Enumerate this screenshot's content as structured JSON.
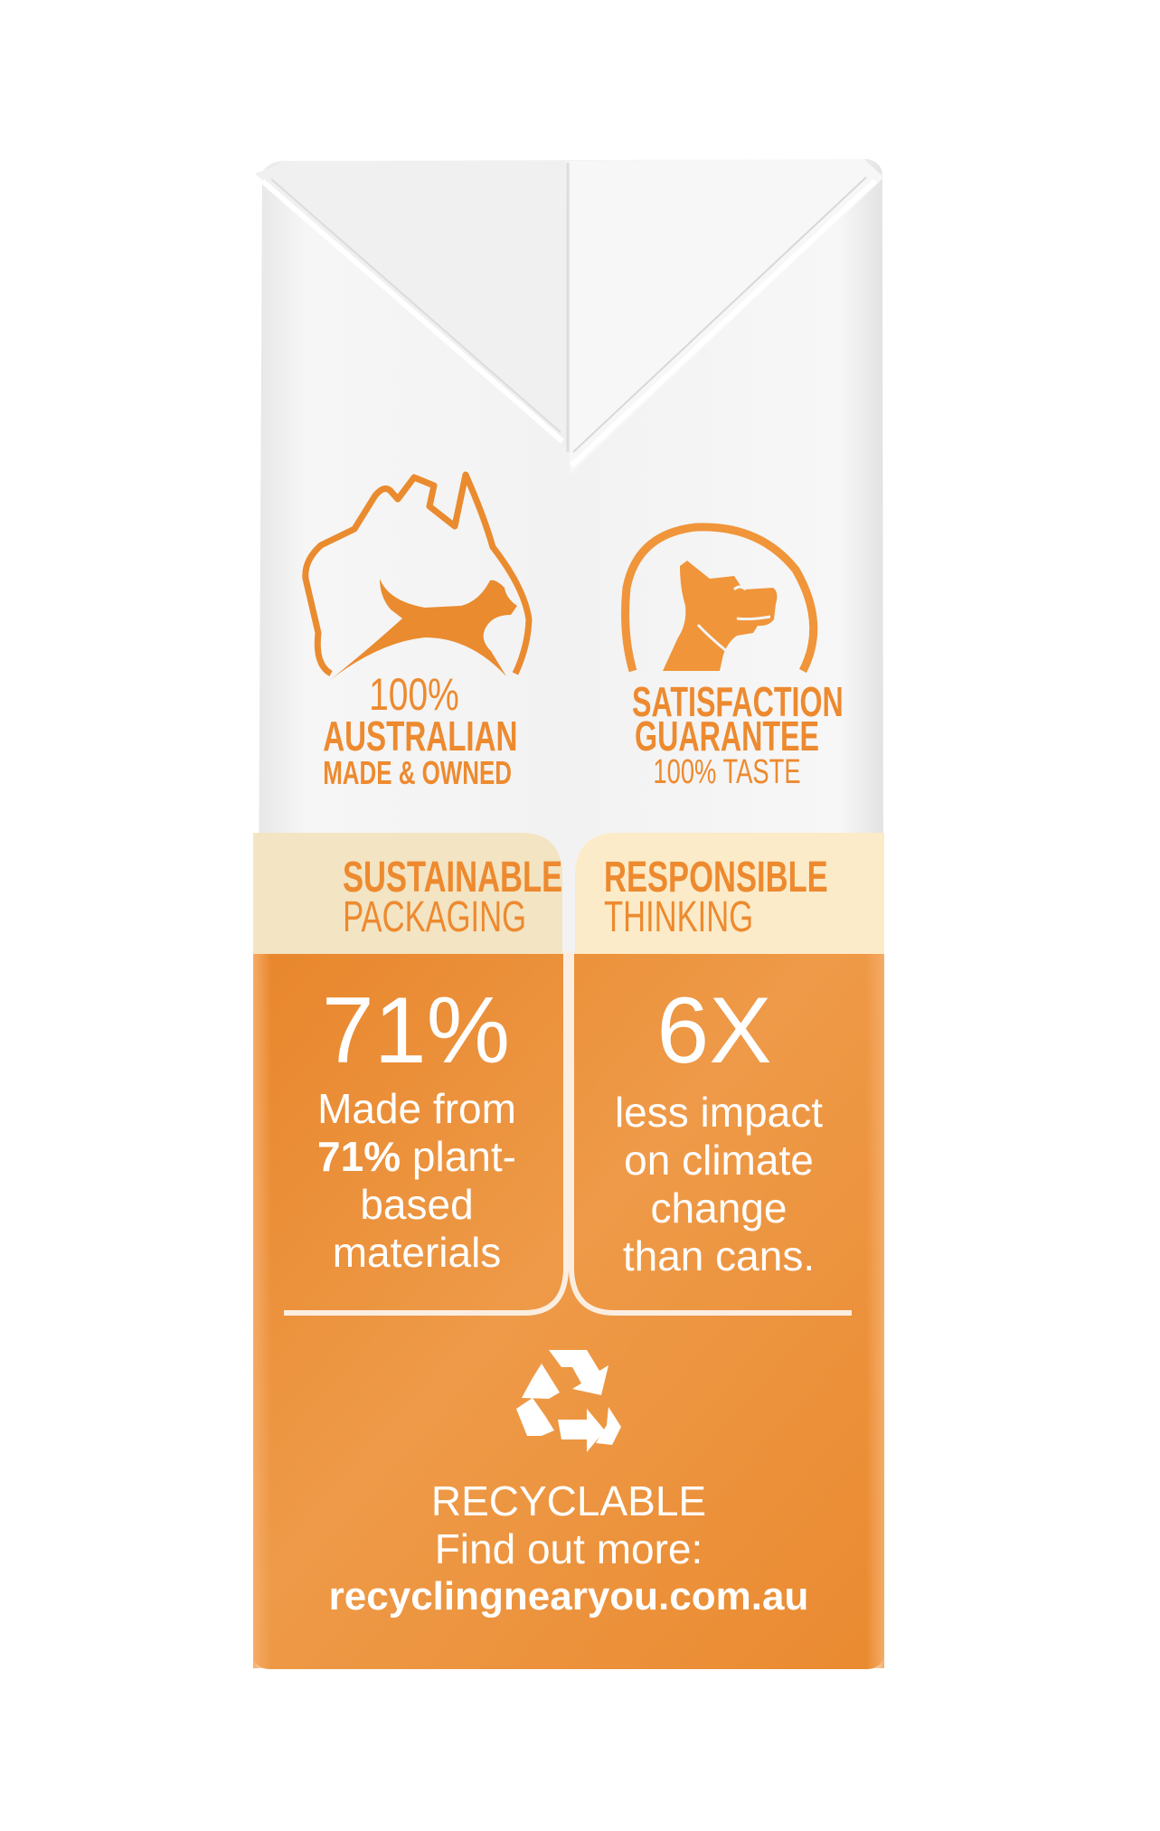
{
  "colors": {
    "carton_white": "#f4f4f4",
    "cream_band": "#fbe9c6",
    "orange_panel": "#ec8d33",
    "accent_text": "#ed8a2f",
    "panel_text": "#ffffff"
  },
  "badges": {
    "australian": {
      "icon": "australia-map-kangaroo-icon",
      "line1": "100%",
      "line2": "AUSTRALIAN",
      "line3": "MADE & OWNED"
    },
    "satisfaction": {
      "icon": "dog-in-circle-icon",
      "line1": "SATISFACTION",
      "line2": "GUARANTEE",
      "line3": "100% TASTE"
    }
  },
  "panels": {
    "left": {
      "heading_bold": "SUSTAINABLE",
      "heading_light": "PACKAGING",
      "stat": "71%",
      "line1": "Made from",
      "line2_bold": "71%",
      "line2_rest": " plant-",
      "line3": "based",
      "line4": "materials"
    },
    "right": {
      "heading_bold": "RESPONSIBLE",
      "heading_light": "THINKING",
      "stat": "6X",
      "line1": "less impact",
      "line2": "on climate",
      "line3": "change",
      "line4": "than cans."
    }
  },
  "recycling": {
    "icon": "recycle-icon",
    "label": "RECYCLABLE",
    "prompt": "Find out more:",
    "url": "recyclingnearyou.com.au"
  }
}
